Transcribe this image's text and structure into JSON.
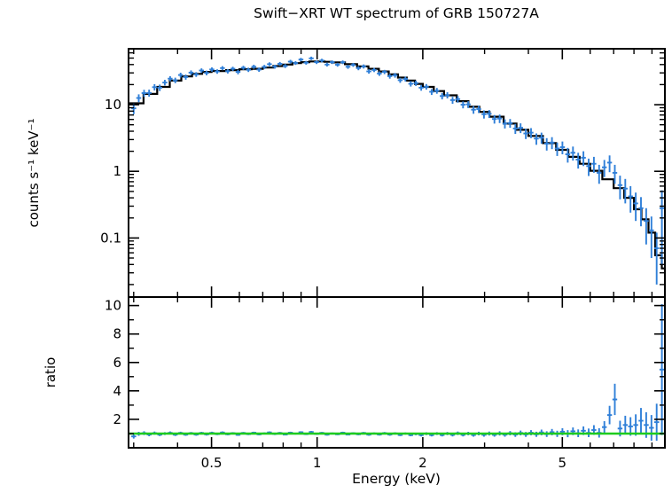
{
  "colors": {
    "background": "#ffffff",
    "data": "#2f7fd8",
    "model": "#000000",
    "reference_line": "#1ecc1e",
    "frame": "#000000"
  },
  "chart_data": {
    "type": "scatter",
    "title": "Swift−XRT WT spectrum of GRB 150727A",
    "xlabel": "Energy (keV)",
    "x_scale": "log",
    "x_range": [
      0.29,
      9.8
    ],
    "x_ticks": [
      0.5,
      1,
      2,
      5
    ],
    "x_tick_labels": [
      "0.5",
      "1",
      "2",
      "5"
    ],
    "x_minor_ticks": [
      0.3,
      0.4,
      0.6,
      0.7,
      0.8,
      0.9,
      3,
      4,
      6,
      7,
      8,
      9
    ],
    "legend": "none",
    "grid": false,
    "panels": [
      {
        "name": "spectrum",
        "ylabel": "counts s⁻¹ keV⁻¹",
        "y_scale": "log",
        "y_range": [
          0.013,
          69
        ],
        "y_ticks": [
          10,
          1,
          0.1
        ],
        "y_tick_labels": [
          "10",
          "1",
          "0.1"
        ]
      },
      {
        "name": "ratio",
        "ylabel": "ratio",
        "y_scale": "linear",
        "y_range": [
          0,
          10.6
        ],
        "y_ticks": [
          10,
          8,
          6,
          4,
          2
        ],
        "y_tick_labels": [
          "10",
          "8",
          "6",
          "4",
          "2"
        ],
        "y_minor_ticks": [
          1,
          3,
          5,
          7,
          9
        ],
        "reference_line": 1
      }
    ],
    "energy": [
      0.3,
      0.31,
      0.321,
      0.332,
      0.344,
      0.356,
      0.368,
      0.381,
      0.394,
      0.408,
      0.422,
      0.437,
      0.452,
      0.468,
      0.484,
      0.501,
      0.519,
      0.537,
      0.556,
      0.575,
      0.595,
      0.616,
      0.637,
      0.66,
      0.683,
      0.707,
      0.731,
      0.757,
      0.783,
      0.811,
      0.839,
      0.868,
      0.899,
      0.93,
      0.962,
      0.996,
      1.031,
      1.067,
      1.104,
      1.143,
      1.183,
      1.224,
      1.267,
      1.311,
      1.357,
      1.404,
      1.453,
      1.504,
      1.556,
      1.611,
      1.667,
      1.725,
      1.785,
      1.848,
      1.912,
      1.979,
      2.048,
      2.12,
      2.194,
      2.271,
      2.35,
      2.432,
      2.517,
      2.605,
      2.696,
      2.79,
      2.888,
      2.989,
      3.093,
      3.201,
      3.313,
      3.429,
      3.549,
      3.673,
      3.801,
      3.934,
      4.071,
      4.214,
      4.361,
      4.513,
      4.671,
      4.834,
      5.003,
      5.178,
      5.359,
      5.546,
      5.74,
      5.941,
      6.148,
      6.363,
      6.586,
      6.816,
      7.054,
      7.301,
      7.556,
      7.82,
      8.093,
      8.376,
      8.669,
      8.972,
      9.286,
      9.61
    ],
    "counts": [
      8.8,
      12.6,
      14.9,
      15.0,
      18.3,
      18.0,
      21.5,
      24.6,
      23.2,
      27.9,
      26.0,
      30.3,
      28.4,
      32.6,
      30.0,
      33.8,
      31.5,
      35.4,
      31.8,
      34.6,
      31.0,
      35.8,
      33.4,
      37.1,
      33.6,
      36.9,
      40.5,
      37.2,
      41.0,
      38.1,
      44.3,
      42.2,
      47.5,
      42.6,
      49.6,
      43.4,
      46.0,
      40.0,
      43.4,
      39.8,
      43.3,
      37.0,
      39.5,
      35.4,
      37.5,
      31.6,
      33.2,
      29.3,
      31.0,
      26.8,
      27.6,
      23.3,
      24.3,
      20.6,
      21.0,
      18.0,
      18.6,
      15.6,
      16.2,
      13.5,
      13.9,
      11.7,
      12.1,
      10.0,
      10.1,
      8.4,
      8.6,
      7.2,
      7.3,
      6.1,
      6.2,
      5.2,
      5.3,
      4.4,
      4.5,
      3.7,
      3.8,
      3.1,
      3.2,
      2.6,
      2.7,
      2.2,
      2.3,
      1.8,
      1.9,
      1.5,
      1.6,
      1.2,
      1.3,
      0.95,
      1.15,
      1.35,
      0.95,
      0.62,
      0.55,
      0.42,
      0.33,
      0.28,
      0.18,
      0.13,
      0.07,
      0.28
    ],
    "counts_err": [
      1.6,
      1.7,
      1.8,
      1.8,
      2.0,
      2.0,
      2.1,
      2.2,
      2.2,
      2.3,
      2.3,
      2.4,
      2.3,
      2.5,
      2.4,
      2.5,
      2.4,
      2.5,
      2.4,
      2.5,
      2.4,
      2.5,
      2.5,
      2.6,
      2.5,
      2.6,
      2.7,
      2.6,
      2.7,
      2.6,
      2.8,
      2.7,
      2.8,
      2.7,
      2.9,
      2.7,
      2.8,
      2.6,
      2.7,
      2.6,
      2.7,
      2.5,
      2.6,
      2.5,
      2.6,
      2.4,
      2.4,
      2.3,
      2.3,
      2.2,
      2.2,
      2.0,
      2.0,
      1.9,
      1.9,
      1.8,
      1.8,
      1.6,
      1.6,
      1.5,
      1.5,
      1.4,
      1.4,
      1.2,
      1.2,
      1.1,
      1.1,
      1.0,
      1.0,
      0.9,
      0.9,
      0.8,
      0.8,
      0.75,
      0.75,
      0.65,
      0.65,
      0.6,
      0.6,
      0.55,
      0.55,
      0.5,
      0.5,
      0.45,
      0.45,
      0.4,
      0.4,
      0.35,
      0.35,
      0.3,
      0.33,
      0.38,
      0.3,
      0.24,
      0.22,
      0.18,
      0.15,
      0.13,
      0.1,
      0.08,
      0.05,
      0.24
    ],
    "ratio": [
      0.8,
      0.98,
      1.03,
      0.93,
      1.03,
      0.92,
      1.0,
      1.05,
      0.92,
      1.04,
      0.92,
      1.03,
      0.93,
      1.04,
      0.94,
      1.05,
      0.96,
      1.07,
      0.95,
      1.03,
      0.91,
      1.04,
      0.96,
      1.06,
      0.94,
      1.01,
      1.08,
      0.97,
      1.04,
      0.93,
      1.06,
      0.99,
      1.09,
      0.96,
      1.11,
      0.97,
      1.05,
      0.92,
      1.01,
      0.95,
      1.06,
      0.93,
      1.02,
      0.95,
      1.04,
      0.92,
      1.01,
      0.93,
      1.03,
      0.93,
      1.01,
      0.9,
      1.0,
      0.89,
      0.97,
      0.89,
      0.99,
      0.89,
      1.0,
      0.9,
      1.0,
      0.91,
      1.02,
      0.91,
      1.0,
      0.9,
      1.0,
      0.91,
      1.0,
      0.91,
      1.01,
      0.92,
      1.02,
      0.93,
      1.04,
      0.94,
      1.06,
      0.95,
      1.08,
      0.96,
      1.1,
      0.98,
      1.13,
      0.99,
      1.16,
      1.02,
      1.2,
      1.05,
      1.25,
      1.05,
      1.45,
      2.3,
      3.4,
      1.35,
      1.6,
      1.5,
      1.6,
      1.9,
      1.6,
      1.4,
      1.8,
      5.5
    ],
    "ratio_err": [
      0.15,
      0.14,
      0.13,
      0.12,
      0.11,
      0.1,
      0.1,
      0.1,
      0.09,
      0.09,
      0.08,
      0.08,
      0.08,
      0.08,
      0.08,
      0.08,
      0.07,
      0.08,
      0.07,
      0.07,
      0.07,
      0.07,
      0.07,
      0.07,
      0.07,
      0.07,
      0.07,
      0.07,
      0.07,
      0.06,
      0.07,
      0.06,
      0.07,
      0.06,
      0.07,
      0.06,
      0.06,
      0.06,
      0.06,
      0.06,
      0.07,
      0.06,
      0.07,
      0.07,
      0.07,
      0.07,
      0.07,
      0.07,
      0.08,
      0.08,
      0.08,
      0.08,
      0.08,
      0.08,
      0.09,
      0.09,
      0.1,
      0.09,
      0.1,
      0.1,
      0.11,
      0.11,
      0.12,
      0.11,
      0.12,
      0.12,
      0.13,
      0.13,
      0.14,
      0.13,
      0.15,
      0.14,
      0.15,
      0.16,
      0.17,
      0.17,
      0.18,
      0.18,
      0.2,
      0.2,
      0.22,
      0.22,
      0.25,
      0.25,
      0.27,
      0.27,
      0.3,
      0.3,
      0.34,
      0.33,
      0.42,
      0.65,
      1.1,
      0.55,
      0.65,
      0.65,
      0.75,
      0.9,
      0.9,
      0.9,
      1.3,
      4.6
    ],
    "model_energy": [
      0.29,
      0.32,
      0.35,
      0.38,
      0.41,
      0.44,
      0.47,
      0.5,
      0.55,
      0.6,
      0.65,
      0.7,
      0.75,
      0.8,
      0.85,
      0.9,
      0.95,
      1.0,
      1.05,
      1.1,
      1.2,
      1.3,
      1.4,
      1.5,
      1.6,
      1.7,
      1.8,
      1.9,
      2.0,
      2.15,
      2.3,
      2.5,
      2.7,
      2.9,
      3.1,
      3.4,
      3.7,
      4.0,
      4.4,
      4.8,
      5.2,
      5.6,
      6.0,
      6.5,
      7.0,
      7.5,
      8.0,
      8.4,
      8.8,
      9.2,
      9.6,
      9.8
    ],
    "model_counts": [
      10.5,
      14.5,
      18.5,
      23,
      26.5,
      29,
      31,
      32,
      33,
      34,
      34.5,
      36,
      38,
      40,
      42,
      43.5,
      44.5,
      44.5,
      44,
      43,
      40.5,
      37.5,
      34.5,
      31.5,
      28.5,
      25.5,
      23,
      20.5,
      18.5,
      16,
      13.8,
      11.3,
      9.3,
      7.8,
      6.6,
      5.2,
      4.2,
      3.4,
      2.65,
      2.1,
      1.65,
      1.3,
      1.02,
      0.76,
      0.56,
      0.4,
      0.27,
      0.19,
      0.12,
      0.055,
      0.035,
      0.03
    ]
  }
}
